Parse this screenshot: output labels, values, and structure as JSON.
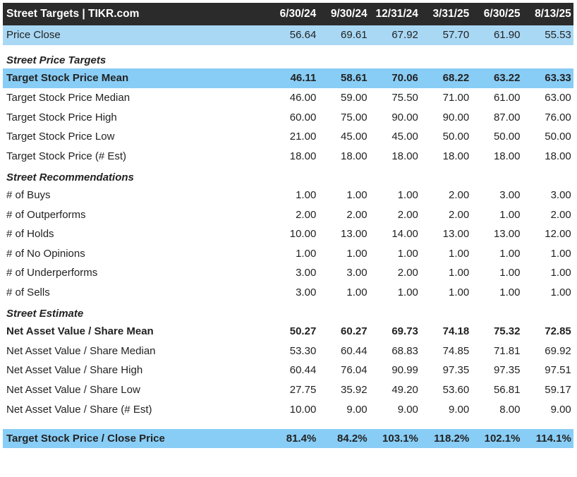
{
  "header": {
    "title": "Street Targets | TIKR.com",
    "dates": [
      "6/30/24",
      "9/30/24",
      "12/31/24",
      "3/31/25",
      "6/30/25",
      "8/13/25"
    ]
  },
  "price_close": {
    "label": "Price Close",
    "values": [
      "56.64",
      "69.61",
      "67.92",
      "57.70",
      "61.90",
      "55.53"
    ]
  },
  "sections": [
    {
      "title": "Street Price Targets",
      "rows": [
        {
          "label": "Target Stock Price Mean",
          "values": [
            "46.11",
            "58.61",
            "70.06",
            "68.22",
            "63.22",
            "63.33"
          ]
        },
        {
          "label": "Target Stock Price Median",
          "values": [
            "46.00",
            "59.00",
            "75.50",
            "71.00",
            "61.00",
            "63.00"
          ]
        },
        {
          "label": "Target Stock Price High",
          "values": [
            "60.00",
            "75.00",
            "90.00",
            "90.00",
            "87.00",
            "76.00"
          ]
        },
        {
          "label": "Target Stock Price Low",
          "values": [
            "21.00",
            "45.00",
            "45.00",
            "50.00",
            "50.00",
            "50.00"
          ]
        },
        {
          "label": "Target Stock Price (# Est)",
          "values": [
            "18.00",
            "18.00",
            "18.00",
            "18.00",
            "18.00",
            "18.00"
          ]
        }
      ]
    },
    {
      "title": "Street Recommendations",
      "rows": [
        {
          "label": "# of Buys",
          "values": [
            "1.00",
            "1.00",
            "1.00",
            "2.00",
            "3.00",
            "3.00"
          ]
        },
        {
          "label": "# of Outperforms",
          "values": [
            "2.00",
            "2.00",
            "2.00",
            "2.00",
            "1.00",
            "2.00"
          ]
        },
        {
          "label": "# of Holds",
          "values": [
            "10.00",
            "13.00",
            "14.00",
            "13.00",
            "13.00",
            "12.00"
          ]
        },
        {
          "label": "# of No Opinions",
          "values": [
            "1.00",
            "1.00",
            "1.00",
            "1.00",
            "1.00",
            "1.00"
          ]
        },
        {
          "label": "# of Underperforms",
          "values": [
            "3.00",
            "3.00",
            "2.00",
            "1.00",
            "1.00",
            "1.00"
          ]
        },
        {
          "label": "# of Sells",
          "values": [
            "3.00",
            "1.00",
            "1.00",
            "1.00",
            "1.00",
            "1.00"
          ]
        }
      ]
    },
    {
      "title": "Street Estimate",
      "rows": [
        {
          "label": "Net Asset Value / Share Mean",
          "values": [
            "50.27",
            "60.27",
            "69.73",
            "74.18",
            "75.32",
            "72.85"
          ]
        },
        {
          "label": "Net Asset Value / Share Median",
          "values": [
            "53.30",
            "60.44",
            "68.83",
            "74.85",
            "71.81",
            "69.92"
          ]
        },
        {
          "label": "Net Asset Value / Share High",
          "values": [
            "60.44",
            "76.04",
            "90.99",
            "97.35",
            "97.35",
            "97.51"
          ]
        },
        {
          "label": "Net Asset Value / Share Low",
          "values": [
            "27.75",
            "35.92",
            "49.20",
            "53.60",
            "56.81",
            "59.17"
          ]
        },
        {
          "label": "Net Asset Value / Share (# Est)",
          "values": [
            "10.00",
            "9.00",
            "9.00",
            "9.00",
            "8.00",
            "9.00"
          ]
        }
      ]
    }
  ],
  "ratio": {
    "label": "Target Stock Price / Close Price",
    "values": [
      "81.4%",
      "84.2%",
      "103.1%",
      "118.2%",
      "102.1%",
      "114.1%"
    ]
  },
  "colors": {
    "header_bg": "#2b2b2b",
    "highlight_light": "#a9d8f5",
    "highlight": "#88cdf6"
  }
}
